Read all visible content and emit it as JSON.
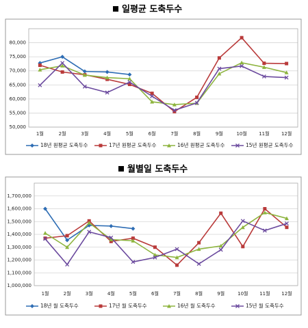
{
  "chart_data": [
    {
      "type": "line",
      "title": "일평균 도축두수",
      "categories": [
        "1월",
        "2월",
        "3월",
        "4월",
        "5월",
        "6월",
        "7월",
        "8월",
        "9월",
        "10월",
        "11월",
        "12월"
      ],
      "ylim": [
        50000,
        85000
      ],
      "yticks": [
        {
          "value": 50000,
          "label": "50,000"
        },
        {
          "value": 55000,
          "label": "55,000"
        },
        {
          "value": 60000,
          "label": "60,000"
        },
        {
          "value": 65000,
          "label": "65,000"
        },
        {
          "value": 70000,
          "label": "70,000"
        },
        {
          "value": 75000,
          "label": "75,000"
        },
        {
          "value": 80000,
          "label": "80,000"
        }
      ],
      "grid": true,
      "legend": "bottom",
      "series": [
        {
          "name": "18년 원평균 도축두수",
          "color": "#2e6db4",
          "marker": "diamond",
          "values": [
            72800,
            75000,
            69800,
            69600,
            68700,
            null,
            null,
            null,
            null,
            null,
            null,
            null
          ]
        },
        {
          "name": "17년 원평균 도축두수",
          "color": "#b93a3a",
          "marker": "square",
          "values": [
            72000,
            69600,
            68600,
            67000,
            65200,
            62000,
            55500,
            60600,
            74600,
            81800,
            72700,
            72600
          ]
        },
        {
          "name": "16년 원평균 도축두수",
          "color": "#8db43e",
          "marker": "triangle",
          "values": [
            70400,
            71800,
            68500,
            67600,
            67200,
            59000,
            58000,
            58500,
            69000,
            72900,
            71300,
            69400
          ]
        },
        {
          "name": "15년 원평균 도축두수",
          "color": "#6b4a9e",
          "marker": "x",
          "values": [
            64900,
            72800,
            64400,
            62300,
            66000,
            61000,
            56000,
            58600,
            70800,
            71700,
            68000,
            67600
          ]
        }
      ]
    },
    {
      "type": "line",
      "title": "월별일 도축두수",
      "categories": [
        "1월",
        "2월",
        "3월",
        "4월",
        "5월",
        "6월",
        "7월",
        "8월",
        "9월",
        "10월",
        "11월",
        "12월"
      ],
      "ylim": [
        1000000,
        1800000
      ],
      "yticks": [
        {
          "value": 1000000,
          "label": "1,000,000"
        },
        {
          "value": 1100000,
          "label": "1,100,000"
        },
        {
          "value": 1200000,
          "label": "1,200,000"
        },
        {
          "value": 1300000,
          "label": "1,300,000"
        },
        {
          "value": 1400000,
          "label": "1,400,000"
        },
        {
          "value": 1500000,
          "label": "1,500,000"
        },
        {
          "value": 1600000,
          "label": "1,600,000"
        },
        {
          "value": 1700000,
          "label": "1,700,000"
        }
      ],
      "grid": true,
      "legend": "bottom",
      "series": [
        {
          "name": "18년 월 도축두수",
          "color": "#2e6db4",
          "marker": "diamond",
          "values": [
            1600000,
            1355000,
            1470000,
            1465000,
            1445000,
            null,
            null,
            null,
            null,
            null,
            null,
            null
          ]
        },
        {
          "name": "17년 월 도축두수",
          "color": "#b93a3a",
          "marker": "square",
          "values": [
            1370000,
            1390000,
            1505000,
            1345000,
            1370000,
            1300000,
            1160000,
            1335000,
            1565000,
            1305000,
            1600000,
            1455000
          ]
        },
        {
          "name": "16년 월 도축두수",
          "color": "#8db43e",
          "marker": "triangle",
          "values": [
            1410000,
            1300000,
            1490000,
            1360000,
            1350000,
            1240000,
            1220000,
            1285000,
            1310000,
            1455000,
            1570000,
            1525000
          ]
        },
        {
          "name": "15년 월 도축두수",
          "color": "#6b4a9e",
          "marker": "x",
          "values": [
            1365000,
            1165000,
            1420000,
            1375000,
            1185000,
            1220000,
            1285000,
            1170000,
            1280000,
            1505000,
            1430000,
            1485000
          ]
        }
      ]
    }
  ]
}
